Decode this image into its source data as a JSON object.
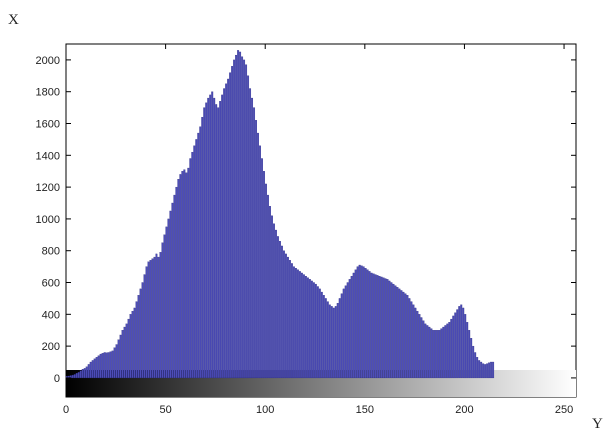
{
  "chart_data": {
    "type": "bar",
    "title": "",
    "xlabel": "Y",
    "ylabel": "X",
    "xlim": [
      0,
      256
    ],
    "ylim": [
      -120,
      2100
    ],
    "x_ticks": [
      0,
      50,
      100,
      150,
      200,
      250
    ],
    "y_ticks": [
      0,
      200,
      400,
      600,
      800,
      1000,
      1200,
      1400,
      1600,
      1800,
      2000
    ],
    "grid": false,
    "colorbar": "grayscale gradient from black (0) to white (255) along the x-axis",
    "bar_color": "#4d4db8",
    "bin_width": 1,
    "x_start": 0,
    "values": [
      10,
      12,
      15,
      18,
      22,
      30,
      35,
      45,
      55,
      60,
      70,
      85,
      100,
      110,
      120,
      130,
      140,
      150,
      155,
      160,
      158,
      160,
      165,
      170,
      190,
      210,
      240,
      270,
      300,
      320,
      340,
      370,
      400,
      420,
      440,
      480,
      520,
      560,
      600,
      650,
      700,
      730,
      740,
      750,
      760,
      780,
      760,
      790,
      850,
      900,
      950,
      1000,
      1050,
      1100,
      1150,
      1200,
      1250,
      1280,
      1300,
      1310,
      1290,
      1320,
      1380,
      1420,
      1460,
      1500,
      1540,
      1580,
      1640,
      1700,
      1730,
      1760,
      1780,
      1800,
      1760,
      1720,
      1700,
      1740,
      1780,
      1820,
      1850,
      1880,
      1920,
      1960,
      2000,
      2030,
      2060,
      2050,
      2020,
      2000,
      1970,
      1900,
      1820,
      1760,
      1700,
      1620,
      1540,
      1460,
      1380,
      1300,
      1220,
      1150,
      1080,
      1020,
      970,
      930,
      890,
      860,
      830,
      800,
      780,
      760,
      740,
      720,
      700,
      690,
      680,
      670,
      660,
      650,
      640,
      630,
      620,
      610,
      600,
      590,
      575,
      560,
      540,
      520,
      500,
      480,
      460,
      450,
      440,
      450,
      470,
      500,
      530,
      560,
      580,
      600,
      620,
      640,
      660,
      680,
      700,
      710,
      705,
      700,
      690,
      680,
      670,
      660,
      655,
      650,
      645,
      640,
      635,
      630,
      625,
      620,
      610,
      600,
      590,
      580,
      570,
      560,
      550,
      540,
      530,
      520,
      500,
      480,
      460,
      440,
      420,
      400,
      380,
      360,
      340,
      330,
      320,
      310,
      300,
      300,
      300,
      300,
      310,
      320,
      330,
      340,
      350,
      370,
      390,
      410,
      430,
      450,
      460,
      440,
      400,
      350,
      300,
      250,
      200,
      160,
      130,
      110,
      100,
      90,
      85,
      90,
      95,
      100,
      100
    ]
  }
}
